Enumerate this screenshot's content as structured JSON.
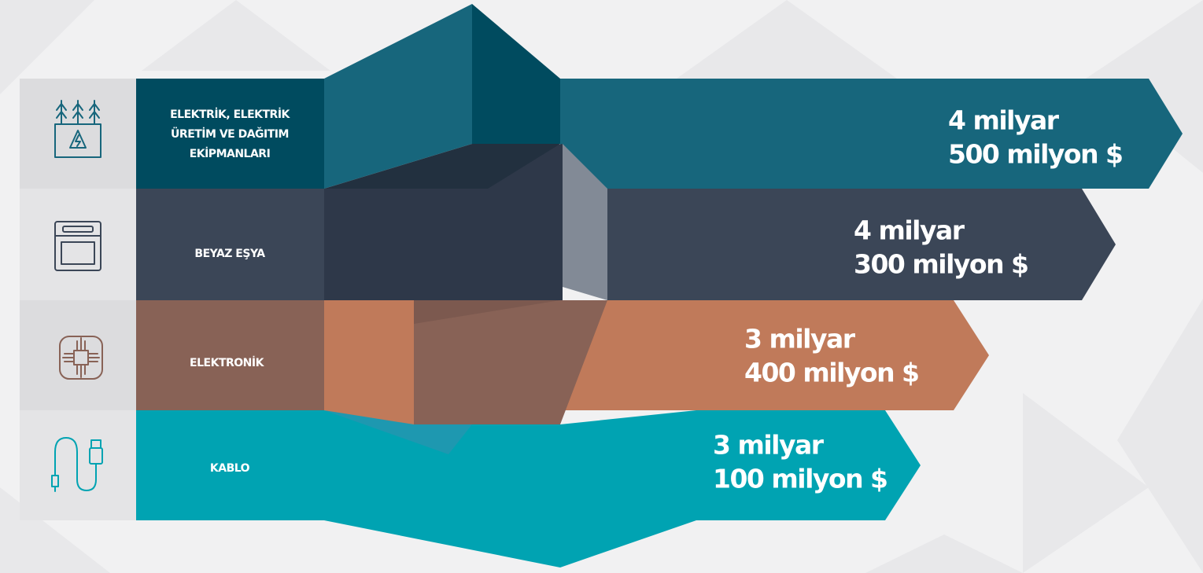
{
  "rows": [
    {
      "label": [
        "ELEKTRİK, ELEKTRİK",
        "ÜRETİM VE DAĞITIM",
        "EKİPMANLARI"
      ],
      "value": [
        "4 milyar",
        "500 milyon $"
      ]
    },
    {
      "label": [
        "BEYAZ EŞYA"
      ],
      "value": [
        "4 milyar",
        "300 milyon $"
      ]
    },
    {
      "label": [
        "ELEKTRONİK"
      ],
      "value": [
        "3 milyar",
        "400 milyon $"
      ]
    },
    {
      "label": [
        "KABLO"
      ],
      "value": [
        "3 milyar",
        "100 milyon $"
      ]
    }
  ]
}
